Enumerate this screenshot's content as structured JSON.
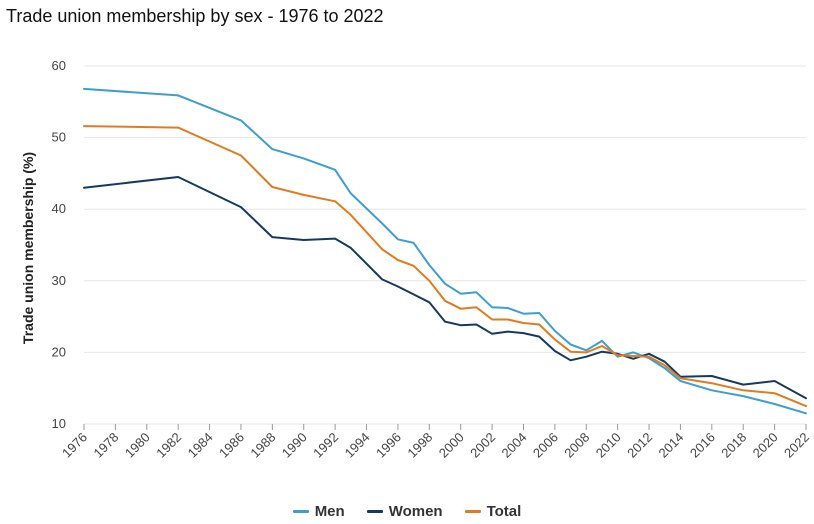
{
  "title": "Trade union membership by sex - 1976 to 2022",
  "chart_data": {
    "type": "line",
    "title": "Trade union membership by sex - 1976 to 2022",
    "xlabel": "",
    "ylabel": "Trade union membership (%)",
    "ylim": [
      10,
      60
    ],
    "yticks": [
      10,
      20,
      30,
      40,
      50,
      60
    ],
    "xlim": [
      1976,
      2022
    ],
    "xticks": [
      1976,
      1978,
      1980,
      1982,
      1984,
      1986,
      1988,
      1990,
      1992,
      1994,
      1996,
      1998,
      2000,
      2002,
      2004,
      2006,
      2008,
      2010,
      2012,
      2014,
      2016,
      2018,
      2020,
      2022
    ],
    "grid": "horizontal",
    "legend": "bottom-center",
    "series": [
      {
        "name": "Men",
        "color": "#3d9fd1",
        "points": [
          [
            1976,
            56.8
          ],
          [
            1982,
            55.9
          ],
          [
            1986,
            52.4
          ],
          [
            1988,
            48.4
          ],
          [
            1990,
            47.1
          ],
          [
            1992,
            45.5
          ],
          [
            1993,
            42.2
          ],
          [
            1995,
            38.0
          ],
          [
            1996,
            35.8
          ],
          [
            1997,
            35.3
          ],
          [
            1998,
            32.2
          ],
          [
            1999,
            29.6
          ],
          [
            2000,
            28.2
          ],
          [
            2001,
            28.4
          ],
          [
            2002,
            26.3
          ],
          [
            2003,
            26.2
          ],
          [
            2004,
            25.4
          ],
          [
            2005,
            25.5
          ],
          [
            2006,
            23.0
          ],
          [
            2007,
            21.1
          ],
          [
            2008,
            20.3
          ],
          [
            2009,
            21.6
          ],
          [
            2010,
            19.4
          ],
          [
            2011,
            20.0
          ],
          [
            2012,
            19.2
          ],
          [
            2013,
            17.8
          ],
          [
            2014,
            16.0
          ],
          [
            2016,
            14.7
          ],
          [
            2018,
            13.9
          ],
          [
            2020,
            12.8
          ],
          [
            2022,
            11.5
          ]
        ]
      },
      {
        "name": "Women",
        "color": "#163a5f",
        "points": [
          [
            1976,
            43.0
          ],
          [
            1982,
            44.5
          ],
          [
            1986,
            40.3
          ],
          [
            1988,
            36.1
          ],
          [
            1990,
            35.7
          ],
          [
            1992,
            35.9
          ],
          [
            1993,
            34.6
          ],
          [
            1995,
            30.2
          ],
          [
            1996,
            29.2
          ],
          [
            1997,
            28.1
          ],
          [
            1998,
            27.0
          ],
          [
            1999,
            24.3
          ],
          [
            2000,
            23.8
          ],
          [
            2001,
            23.9
          ],
          [
            2002,
            22.6
          ],
          [
            2003,
            22.9
          ],
          [
            2004,
            22.7
          ],
          [
            2005,
            22.2
          ],
          [
            2006,
            20.2
          ],
          [
            2007,
            18.9
          ],
          [
            2008,
            19.4
          ],
          [
            2009,
            20.1
          ],
          [
            2010,
            19.8
          ],
          [
            2011,
            19.1
          ],
          [
            2012,
            19.8
          ],
          [
            2013,
            18.7
          ],
          [
            2014,
            16.6
          ],
          [
            2016,
            16.7
          ],
          [
            2018,
            15.5
          ],
          [
            2020,
            16.0
          ],
          [
            2022,
            13.6
          ]
        ]
      },
      {
        "name": "Total",
        "color": "#e07c1e",
        "points": [
          [
            1976,
            51.6
          ],
          [
            1982,
            51.4
          ],
          [
            1986,
            47.5
          ],
          [
            1988,
            43.1
          ],
          [
            1990,
            42.0
          ],
          [
            1992,
            41.1
          ],
          [
            1993,
            39.2
          ],
          [
            1995,
            34.4
          ],
          [
            1996,
            32.9
          ],
          [
            1997,
            32.1
          ],
          [
            1998,
            30.0
          ],
          [
            1999,
            27.2
          ],
          [
            2000,
            26.1
          ],
          [
            2001,
            26.3
          ],
          [
            2002,
            24.6
          ],
          [
            2003,
            24.6
          ],
          [
            2004,
            24.1
          ],
          [
            2005,
            23.9
          ],
          [
            2006,
            21.8
          ],
          [
            2007,
            20.1
          ],
          [
            2008,
            20.0
          ],
          [
            2009,
            20.9
          ],
          [
            2010,
            19.6
          ],
          [
            2011,
            19.5
          ],
          [
            2012,
            19.4
          ],
          [
            2013,
            18.2
          ],
          [
            2014,
            16.4
          ],
          [
            2016,
            15.7
          ],
          [
            2018,
            14.7
          ],
          [
            2020,
            14.3
          ],
          [
            2022,
            12.5
          ]
        ]
      }
    ]
  }
}
